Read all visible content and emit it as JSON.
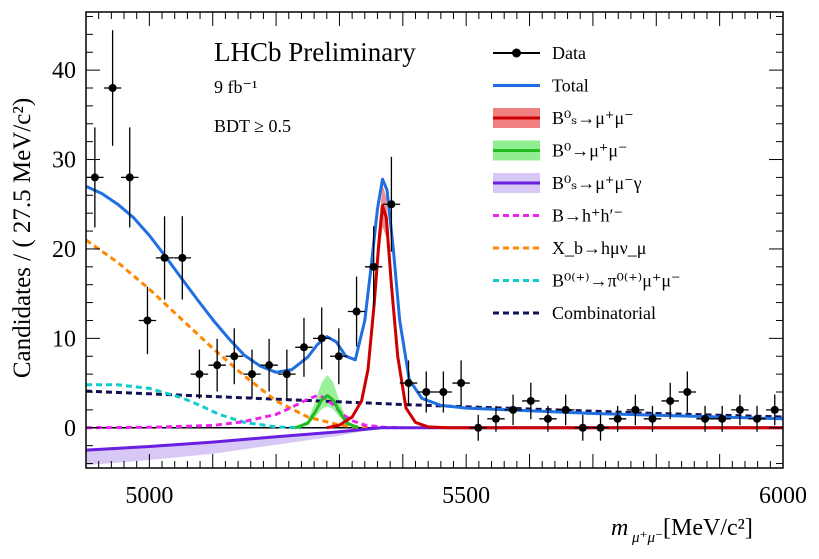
{
  "chart_data": {
    "type": "line",
    "title": "LHCb Preliminary",
    "annotations": [
      "9 fb⁻¹",
      "BDT ≥ 0.5"
    ],
    "xlabel": "m",
    "xlabel_sub": "μ⁺μ⁻",
    "xlabel_unit": " [MeV/c²]",
    "ylabel": "Candidates / ( 27.5 MeV/c²)",
    "xlim": [
      4900,
      6000
    ],
    "ylim": [
      -4.5,
      46.5
    ],
    "xticks": [
      5000,
      5500,
      6000
    ],
    "yticks": [
      0,
      10,
      20,
      30,
      40
    ],
    "legend_position": "top-right",
    "legend": [
      {
        "label": "Data",
        "style": "data"
      },
      {
        "label": "Total",
        "style": "line",
        "color": "#1f6fe0"
      },
      {
        "label": "B⁰ₛ→μ⁺μ⁻",
        "style": "band-line",
        "color": "#cc0000",
        "fill": "#f08080"
      },
      {
        "label": "B⁰→μ⁺μ⁻",
        "style": "band-line",
        "color": "#22bb22",
        "fill": "#90ee90"
      },
      {
        "label": "B⁰ₛ→μ⁺μ⁻γ",
        "style": "band-line",
        "color": "#6a1ee0",
        "fill": "#d8c8f5"
      },
      {
        "label": "B→h⁺h′⁻",
        "style": "dash",
        "color": "#ee22ee"
      },
      {
        "label": "X_b→hμν_μ",
        "style": "dash",
        "color": "#ff8800"
      },
      {
        "label": "B⁰⁽⁺⁾→π⁰⁽⁺⁾μ⁺μ⁻",
        "style": "dash",
        "color": "#11cccc"
      },
      {
        "label": "Combinatorial",
        "style": "dash",
        "color": "#111155"
      }
    ],
    "data_points": {
      "x": [
        4914,
        4942,
        4969,
        4997,
        5024,
        5052,
        5079,
        5107,
        5134,
        5162,
        5189,
        5217,
        5244,
        5272,
        5299,
        5327,
        5354,
        5382,
        5409,
        5437,
        5464,
        5492,
        5519,
        5547,
        5574,
        5602,
        5629,
        5657,
        5684,
        5712,
        5739,
        5767,
        5794,
        5822,
        5849,
        5877,
        5904,
        5932,
        5959,
        5987
      ],
      "y": [
        28,
        38,
        28,
        12,
        19,
        19,
        6,
        7,
        8,
        6,
        7,
        6,
        9,
        10,
        8,
        13,
        18,
        25,
        5,
        4,
        4,
        5,
        0,
        1,
        2,
        3,
        1,
        2,
        0,
        0,
        1,
        2,
        1,
        3,
        4,
        1,
        1,
        2,
        1,
        2
      ],
      "x_err": 13.75
    },
    "series": [
      {
        "name": "Total",
        "color": "#1f6fe0",
        "x": [
          4900,
          4925,
          4950,
          4975,
          5000,
          5025,
          5050,
          5075,
          5100,
          5125,
          5150,
          5175,
          5200,
          5225,
          5250,
          5265,
          5280,
          5295,
          5310,
          5325,
          5340,
          5350,
          5360,
          5368,
          5375,
          5385,
          5395,
          5410,
          5430,
          5460,
          5500,
          5600,
          5700,
          5800,
          5900,
          6000
        ],
        "y": [
          27,
          26.2,
          25,
          23.5,
          21.5,
          19.2,
          16.8,
          14.4,
          12.1,
          10,
          8.1,
          6.9,
          6.2,
          6.5,
          7.9,
          9.3,
          10.2,
          9.6,
          8,
          7.6,
          12,
          18,
          24.5,
          27.8,
          26.6,
          20,
          12,
          5.4,
          3.3,
          2.5,
          2.2,
          1.9,
          1.6,
          1.4,
          1.2,
          1.0
        ]
      },
      {
        "name": "Bs->mumu",
        "color": "#cc0000",
        "x": [
          5280,
          5300,
          5320,
          5335,
          5345,
          5355,
          5362,
          5368,
          5374,
          5382,
          5392,
          5405,
          5420,
          5440,
          5470,
          6000
        ],
        "y": [
          0,
          0.3,
          1.2,
          3,
          6.5,
          14,
          20.5,
          24.8,
          23.5,
          16,
          8,
          2.2,
          0.6,
          0.1,
          0,
          0
        ],
        "band": [
          22.5,
          27.2
        ]
      },
      {
        "name": "B0->mumu",
        "color": "#22bb22",
        "x": [
          5230,
          5250,
          5262,
          5272,
          5281,
          5290,
          5300,
          5312,
          5330
        ],
        "y": [
          0,
          0.5,
          1.8,
          3.1,
          3.6,
          3.1,
          1.8,
          0.5,
          0
        ],
        "band_peak": [
          2.4,
          5.9
        ]
      },
      {
        "name": "Bs->mumugamma",
        "color": "#6a1ee0",
        "x": [
          4900,
          5000,
          5100,
          5200,
          5300,
          5366,
          5450,
          6000
        ],
        "y": [
          -2.5,
          -2.1,
          -1.6,
          -1.0,
          -0.45,
          0,
          0,
          0
        ],
        "band_low": [
          -4.2,
          -3.6,
          -2.9,
          -1.9,
          -0.9,
          0,
          0,
          0
        ]
      },
      {
        "name": "B->hh",
        "color": "#ee22ee",
        "x": [
          4900,
          5000,
          5100,
          5150,
          5200,
          5225,
          5250,
          5265,
          5275,
          5290,
          5305,
          5320,
          5340,
          5370,
          5400
        ],
        "y": [
          0,
          0.05,
          0.25,
          0.7,
          1.5,
          2.3,
          3.2,
          3.6,
          3.4,
          2.6,
          1.5,
          0.8,
          0.3,
          0.05,
          0
        ]
      },
      {
        "name": "Xb->hmunu",
        "color": "#ff8800",
        "x": [
          4900,
          4950,
          5000,
          5050,
          5100,
          5150,
          5200,
          5250,
          5300,
          5340,
          5360
        ],
        "y": [
          21,
          18.5,
          15.5,
          12.2,
          8.9,
          5.8,
          3,
          1.2,
          0.3,
          0.03,
          0
        ]
      },
      {
        "name": "B->pimumu",
        "color": "#11cccc",
        "x": [
          4900,
          4950,
          5000,
          5050,
          5080,
          5110,
          5150,
          5200,
          5240
        ],
        "y": [
          4.8,
          4.8,
          4.4,
          3.4,
          2.5,
          1.5,
          0.6,
          0.1,
          0
        ]
      },
      {
        "name": "Combinatorial",
        "color": "#111155",
        "x": [
          4900,
          5000,
          5100,
          5200,
          5300,
          5400,
          5500,
          5600,
          5700,
          5800,
          5900,
          6000
        ],
        "y": [
          4.1,
          3.8,
          3.5,
          3.2,
          2.9,
          2.6,
          2.35,
          2.1,
          1.85,
          1.6,
          1.4,
          1.2
        ]
      }
    ]
  }
}
